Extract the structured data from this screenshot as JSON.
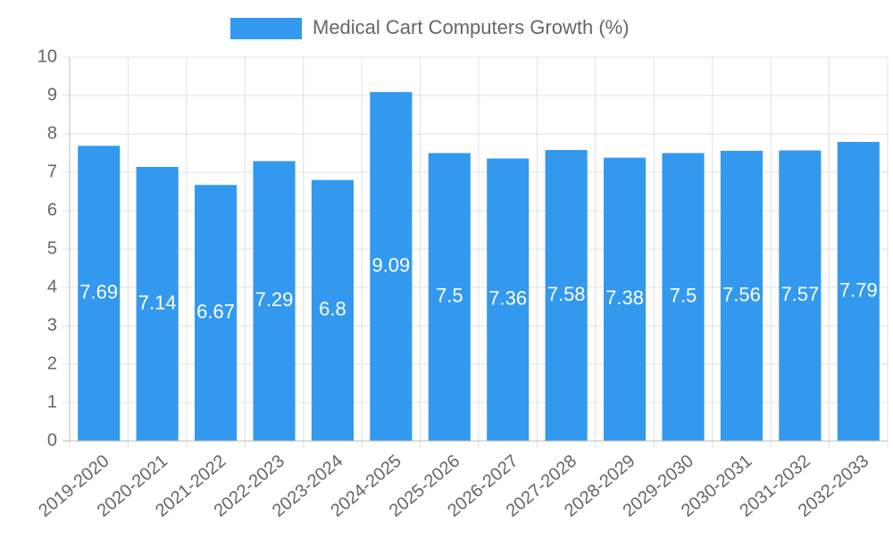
{
  "chart_data": {
    "type": "bar",
    "legend": {
      "label": "Medical Cart Computers Growth (%)",
      "placement": "top-center"
    },
    "categories": [
      "2019-2020",
      "2020-2021",
      "2021-2022",
      "2022-2023",
      "2023-2024",
      "2024-2025",
      "2025-2026",
      "2026-2027",
      "2027-2028",
      "2028-2029",
      "2029-2030",
      "2030-2031",
      "2031-2032",
      "2032-2033"
    ],
    "values": [
      7.69,
      7.14,
      6.67,
      7.29,
      6.8,
      9.09,
      7.5,
      7.36,
      7.58,
      7.38,
      7.5,
      7.56,
      7.57,
      7.79
    ],
    "ylim": [
      0,
      10
    ],
    "yticks": [
      0,
      1,
      2,
      3,
      4,
      5,
      6,
      7,
      8,
      9,
      10
    ],
    "grid": true,
    "xlabel": "",
    "ylabel": "",
    "colors": {
      "bar": "#3399ee",
      "grid": "#e0e0e0",
      "axis": "#bbbbbb",
      "tick_text": "#666666",
      "value_label": "#ffffff",
      "legend_text": "#666666"
    }
  }
}
